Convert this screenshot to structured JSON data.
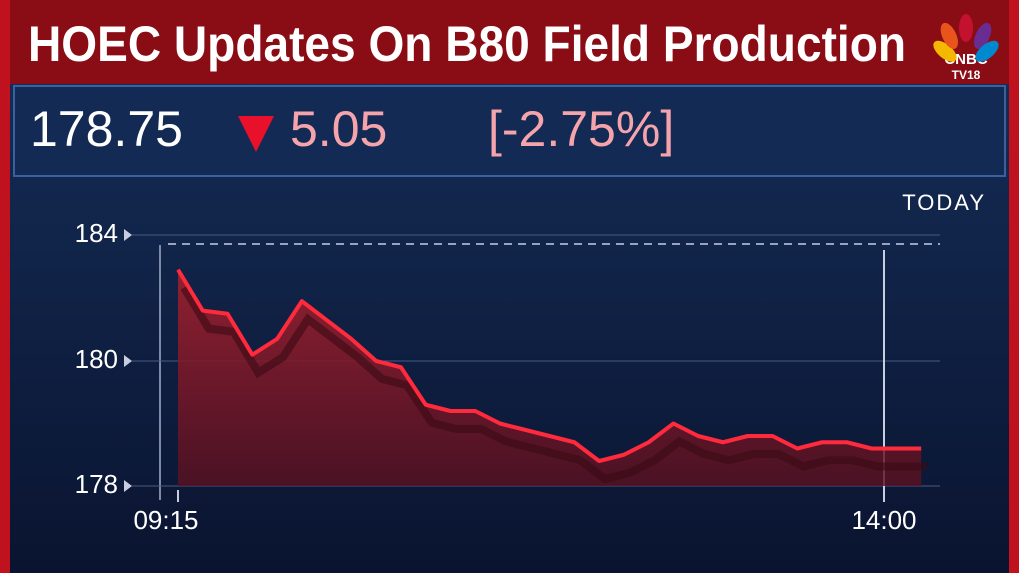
{
  "header": {
    "title": "HOEC Updates On B80 Field Production",
    "logo": [
      "CNBC",
      "TV18"
    ]
  },
  "quote": {
    "price": "178.75",
    "change": "5.05",
    "change_pct": "[-2.75%]"
  },
  "chart_data": {
    "type": "line",
    "period": "TODAY",
    "x": [
      "09:15",
      "09:25",
      "09:35",
      "09:45",
      "09:55",
      "10:05",
      "10:15",
      "10:25",
      "10:35",
      "10:45",
      "10:55",
      "11:05",
      "11:15",
      "11:25",
      "11:35",
      "11:45",
      "11:55",
      "12:05",
      "12:15",
      "12:25",
      "12:35",
      "12:45",
      "12:55",
      "13:05",
      "13:15",
      "13:25",
      "13:35",
      "13:45",
      "13:55",
      "14:05",
      "14:15"
    ],
    "series": [
      {
        "color": "#ff2a3c",
        "values": [
          182.9,
          181.6,
          181.5,
          180.2,
          180.7,
          181.9,
          181.3,
          180.7,
          180.0,
          179.9,
          179.3,
          179.2,
          179.2,
          179.0,
          178.9,
          178.8,
          178.7,
          178.4,
          178.5,
          178.7,
          179.0,
          178.8,
          178.7,
          178.8,
          178.8,
          178.6,
          178.7,
          178.7,
          178.6,
          178.6,
          178.6
        ]
      }
    ],
    "ylim": [
      178,
      184
    ],
    "yticks": [
      178,
      180,
      184
    ],
    "xticks": [
      "09:15",
      "14:00"
    ],
    "grid": true
  }
}
